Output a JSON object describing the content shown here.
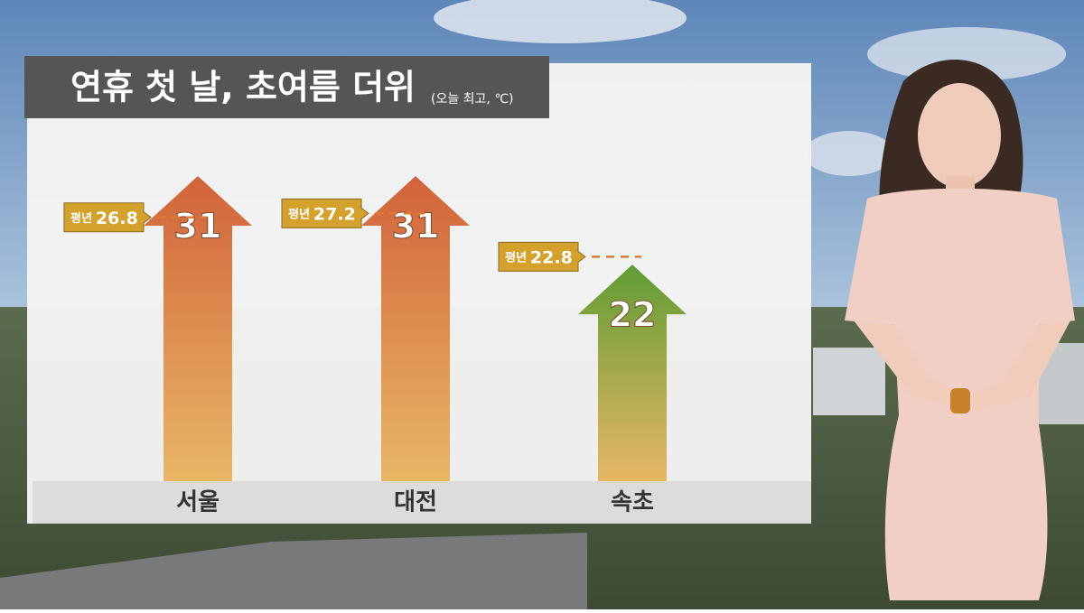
{
  "chart_data": {
    "type": "bar",
    "title": "연휴 첫 날, 초여름 더위",
    "subtitle": "(오늘 최고, ℃)",
    "categories": [
      "서울",
      "대전",
      "속초"
    ],
    "values": [
      31,
      31,
      22
    ],
    "colors": [
      "#d2623a",
      "#d2623a",
      "#5e9c33"
    ],
    "normal_label": "평년",
    "normal_values": [
      26.8,
      27.2,
      22.8
    ]
  }
}
